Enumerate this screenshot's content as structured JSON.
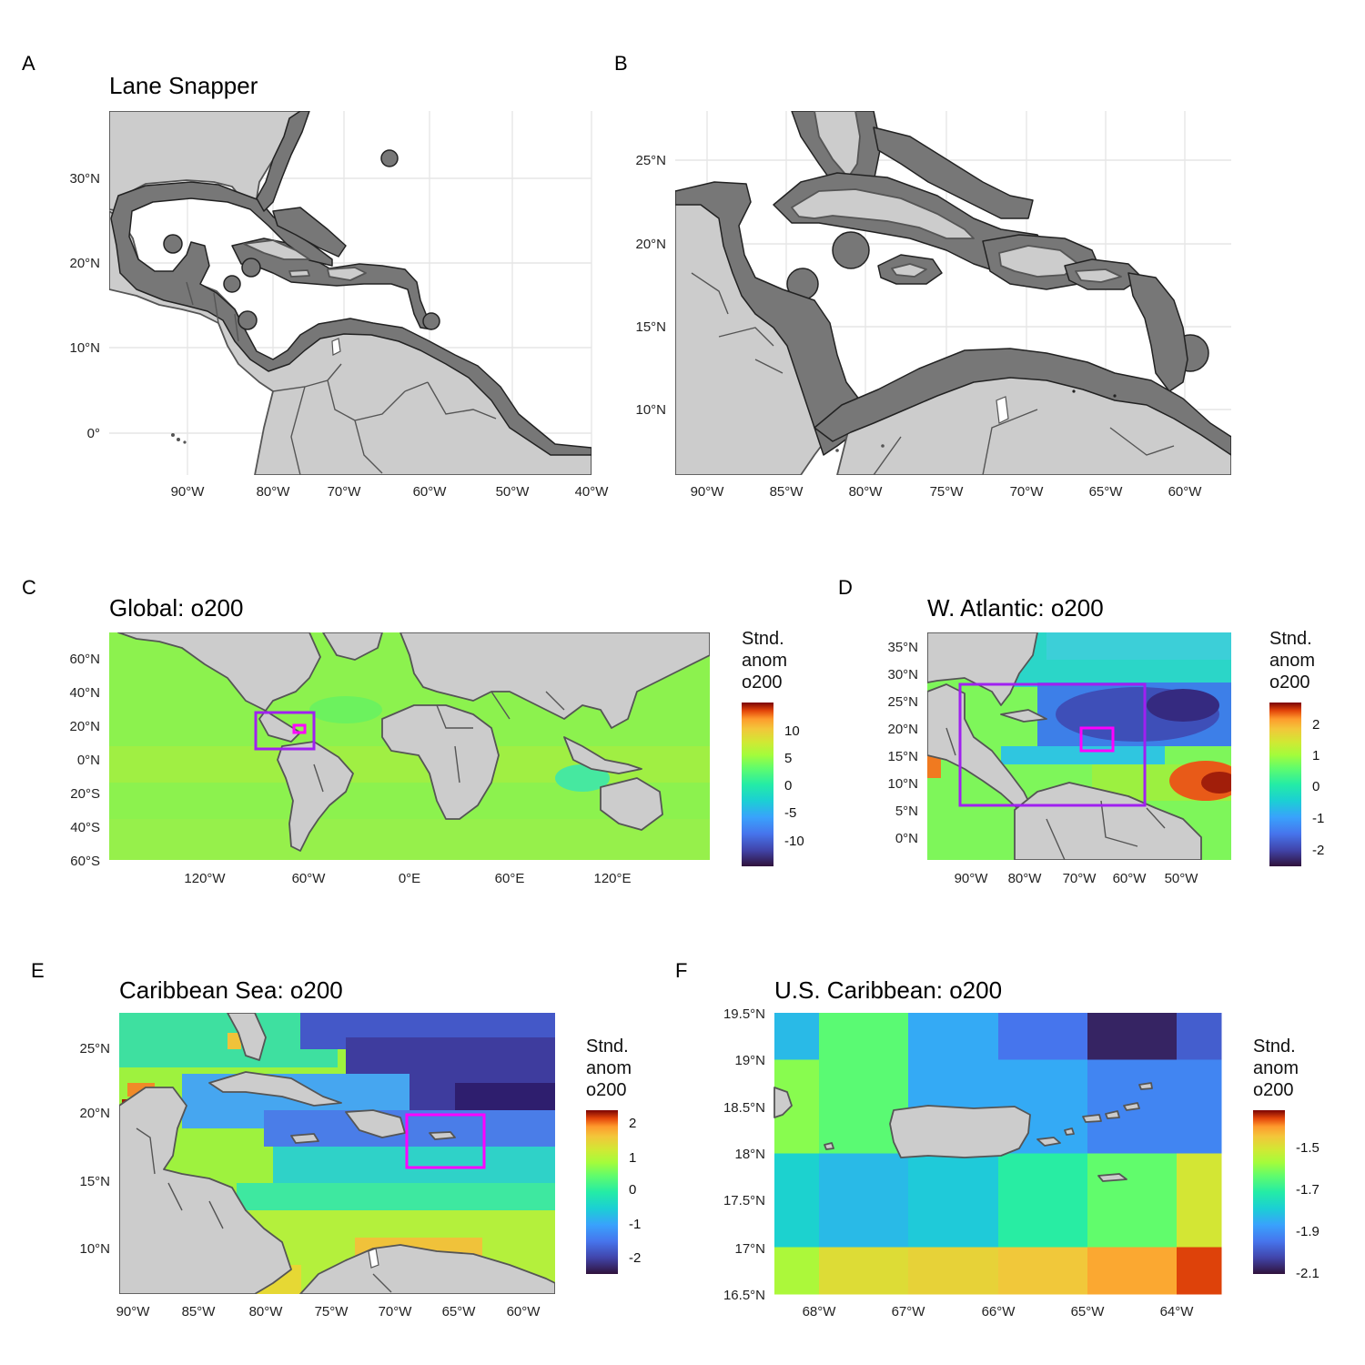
{
  "panels": [
    {
      "id": "A",
      "letter": "A",
      "title": "Lane Snapper",
      "xticks": [
        "90°W",
        "80°W",
        "70°W",
        "60°W",
        "50°W",
        "40°W"
      ],
      "yticks": [
        "30°N",
        "20°N",
        "10°N",
        "0°"
      ]
    },
    {
      "id": "B",
      "letter": "B",
      "title": "",
      "xticks": [
        "90°W",
        "85°W",
        "80°W",
        "75°W",
        "70°W",
        "65°W",
        "60°W"
      ],
      "yticks": [
        "25°N",
        "20°N",
        "15°N",
        "10°N"
      ]
    },
    {
      "id": "C",
      "letter": "C",
      "title": "Global: o200",
      "xticks": [
        "120°W",
        "60°W",
        "0°E",
        "60°E",
        "120°E"
      ],
      "yticks": [
        "60°N",
        "40°N",
        "20°N",
        "0°N",
        "20°S",
        "40°S",
        "60°S"
      ],
      "legend": {
        "title": [
          "Stnd.",
          "anom",
          "o200"
        ],
        "ticks": [
          "10",
          "5",
          "0",
          "-5",
          "-10"
        ]
      }
    },
    {
      "id": "D",
      "letter": "D",
      "title": "W. Atlantic: o200",
      "xticks": [
        "90°W",
        "80°W",
        "70°W",
        "60°W",
        "50°W"
      ],
      "yticks": [
        "35°N",
        "30°N",
        "25°N",
        "20°N",
        "15°N",
        "10°N",
        "5°N",
        "0°N"
      ],
      "legend": {
        "title": [
          "Stnd.",
          "anom",
          "o200"
        ],
        "ticks": [
          "2",
          "1",
          "0",
          "-1",
          "-2"
        ]
      }
    },
    {
      "id": "E",
      "letter": "E",
      "title": "Caribbean Sea: o200",
      "xticks": [
        "90°W",
        "85°W",
        "80°W",
        "75°W",
        "70°W",
        "65°W",
        "60°W"
      ],
      "yticks": [
        "25°N",
        "20°N",
        "15°N",
        "10°N"
      ],
      "legend": {
        "title": [
          "Stnd.",
          "anom",
          "o200"
        ],
        "ticks": [
          "2",
          "1",
          "0",
          "-1",
          "-2"
        ]
      }
    },
    {
      "id": "F",
      "letter": "F",
      "title": "U.S. Caribbean: o200",
      "xticks": [
        "68°W",
        "67°W",
        "66°W",
        "65°W",
        "64°W"
      ],
      "yticks": [
        "19.5°N",
        "19°N",
        "18.5°N",
        "18°N",
        "17.5°N",
        "17°N",
        "16.5°N"
      ],
      "legend": {
        "title": [
          "Stnd.",
          "anom",
          "o200"
        ],
        "ticks": [
          "-1.5",
          "-1.7",
          "-1.9",
          "-2.1"
        ]
      },
      "grid_values": [
        [
          -1.85,
          -1.65,
          -1.88,
          -1.98,
          -2.12,
          -2.02
        ],
        [
          -1.6,
          -1.65,
          -1.88,
          -1.88,
          -1.95,
          -1.95
        ],
        [
          -1.6,
          -1.65,
          -1.88,
          -1.88,
          -1.95,
          -1.95
        ],
        [
          -1.8,
          -1.85,
          -1.82,
          -1.72,
          -1.64,
          -1.5
        ],
        [
          -1.8,
          -1.85,
          -1.82,
          -1.72,
          -1.64,
          -1.5
        ],
        [
          -1.56,
          -1.48,
          -1.46,
          -1.44,
          -1.4,
          -1.34
        ]
      ]
    }
  ],
  "colors": {
    "land": "#cccccc",
    "buffer": "#777777",
    "outline": "#555555",
    "box_outer": "#a020f0",
    "box_inner": "#ff00ff"
  }
}
